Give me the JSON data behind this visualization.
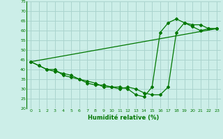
{
  "xlabel": "Humidité relative (%)",
  "background_color": "#cceee8",
  "grid_color": "#aad4ce",
  "line_color": "#007700",
  "ylim": [
    20,
    75
  ],
  "yticks": [
    20,
    25,
    30,
    35,
    40,
    45,
    50,
    55,
    60,
    65,
    70,
    75
  ],
  "xlim": [
    -0.5,
    23.5
  ],
  "xticks": [
    0,
    1,
    2,
    3,
    4,
    5,
    6,
    7,
    8,
    9,
    10,
    11,
    12,
    13,
    14,
    15,
    16,
    17,
    18,
    19,
    20,
    21,
    22,
    23
  ],
  "line1_x": [
    0,
    1,
    2,
    3,
    4,
    5,
    6,
    7,
    8,
    9,
    10,
    11,
    12,
    13,
    14,
    15,
    16,
    17,
    18,
    19,
    20,
    21,
    22,
    23
  ],
  "line1_y": [
    44,
    42,
    40,
    39,
    38,
    37,
    35,
    34,
    33,
    31,
    31,
    30,
    31,
    30,
    28,
    27,
    27,
    31,
    59,
    64,
    63,
    63,
    61,
    61
  ],
  "line2_x": [
    0,
    1,
    2,
    3,
    4,
    5,
    6,
    7,
    8,
    9,
    10,
    11,
    12,
    13,
    14,
    15,
    16,
    17,
    18,
    19,
    20,
    21,
    22,
    23
  ],
  "line2_y": [
    44,
    42,
    40,
    40,
    37,
    36,
    35,
    33,
    32,
    32,
    31,
    31,
    30,
    27,
    26,
    31,
    59,
    64,
    66,
    64,
    62,
    60,
    61,
    61
  ],
  "line3_x": [
    0,
    23
  ],
  "line3_y": [
    44,
    61
  ],
  "tick_fontsize": 4.5,
  "xlabel_fontsize": 6.0
}
